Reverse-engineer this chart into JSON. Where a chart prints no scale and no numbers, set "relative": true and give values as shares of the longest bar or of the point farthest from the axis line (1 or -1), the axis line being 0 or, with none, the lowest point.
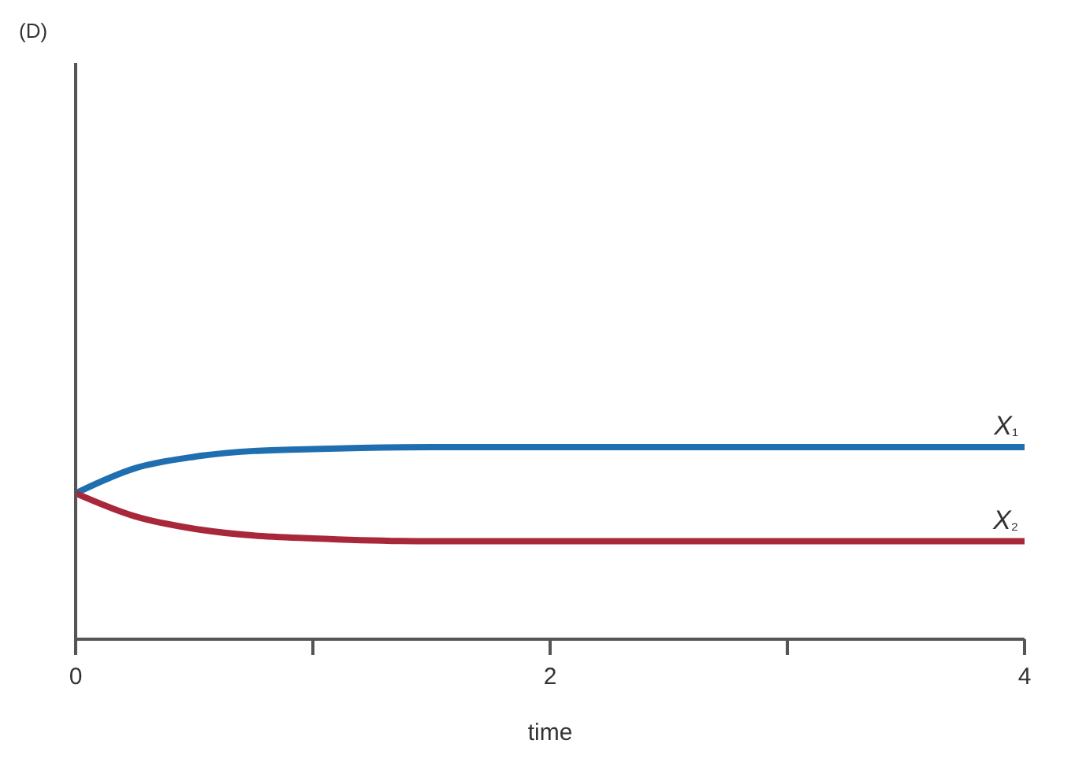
{
  "chart_data": {
    "type": "line",
    "title": "(D)",
    "xlabel": "time",
    "relative": true,
    "x": [
      0,
      0.25,
      0.5,
      0.75,
      1,
      1.5,
      2,
      3,
      4
    ],
    "series": [
      {
        "name": "X₁",
        "color": "#1f6fb0",
        "values": [
          0.76,
          0.89,
          0.95,
          0.98,
          0.99,
          1,
          1,
          1,
          1
        ]
      },
      {
        "name": "X₂",
        "color": "#a8283a",
        "values": [
          0.76,
          0.64,
          0.575,
          0.54,
          0.525,
          0.51,
          0.51,
          0.51,
          0.51
        ]
      }
    ],
    "xlim": [
      0,
      4
    ],
    "xticks": [
      0,
      {
        "value": 1,
        "label": null
      },
      2,
      {
        "value": 3,
        "label": null
      },
      4
    ],
    "grid": false,
    "legend": false,
    "marker": "none",
    "line_style": "solid"
  }
}
